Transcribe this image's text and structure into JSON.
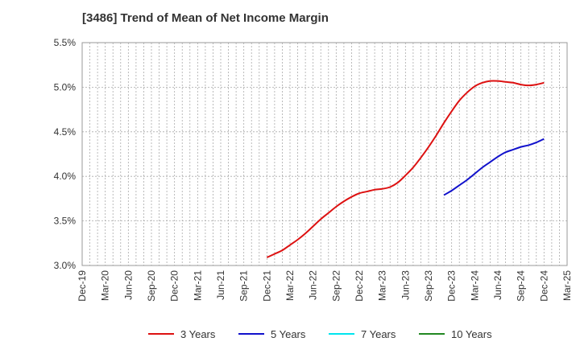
{
  "chart_data": {
    "type": "line",
    "title": "[3486]  Trend of Mean of Net Income Margin",
    "xlabel": "",
    "ylabel": "",
    "ylim": [
      3.0,
      5.5
    ],
    "yticks": [
      "3.0%",
      "3.5%",
      "4.0%",
      "4.5%",
      "5.0%",
      "5.5%"
    ],
    "ytick_values": [
      3.0,
      3.5,
      4.0,
      4.5,
      5.0,
      5.5
    ],
    "x_ticks": [
      "Dec-19",
      "Mar-20",
      "Jun-20",
      "Sep-20",
      "Dec-20",
      "Mar-21",
      "Jun-21",
      "Sep-21",
      "Dec-21",
      "Mar-22",
      "Jun-22",
      "Sep-22",
      "Dec-22",
      "Mar-23",
      "Jun-23",
      "Sep-23",
      "Dec-23",
      "Mar-24",
      "Jun-24",
      "Sep-24",
      "Dec-24",
      "Mar-25"
    ],
    "grid": true,
    "legend_position": "bottom",
    "series": [
      {
        "name": "3 Years",
        "color": "#dd1111",
        "points": [
          [
            "Dec-21",
            3.09
          ],
          [
            "Jan-22",
            3.13
          ],
          [
            "Feb-22",
            3.17
          ],
          [
            "Mar-22",
            3.23
          ],
          [
            "Apr-22",
            3.29
          ],
          [
            "May-22",
            3.36
          ],
          [
            "Jun-22",
            3.44
          ],
          [
            "Jul-22",
            3.52
          ],
          [
            "Aug-22",
            3.59
          ],
          [
            "Sep-22",
            3.66
          ],
          [
            "Oct-22",
            3.72
          ],
          [
            "Nov-22",
            3.77
          ],
          [
            "Dec-22",
            3.81
          ],
          [
            "Jan-23",
            3.83
          ],
          [
            "Feb-23",
            3.85
          ],
          [
            "Mar-23",
            3.86
          ],
          [
            "Apr-23",
            3.88
          ],
          [
            "May-23",
            3.93
          ],
          [
            "Jun-23",
            4.01
          ],
          [
            "Jul-23",
            4.1
          ],
          [
            "Aug-23",
            4.21
          ],
          [
            "Sep-23",
            4.33
          ],
          [
            "Oct-23",
            4.46
          ],
          [
            "Nov-23",
            4.6
          ],
          [
            "Dec-23",
            4.73
          ],
          [
            "Jan-24",
            4.85
          ],
          [
            "Feb-24",
            4.94
          ],
          [
            "Mar-24",
            5.01
          ],
          [
            "Apr-24",
            5.05
          ],
          [
            "May-24",
            5.07
          ],
          [
            "Jun-24",
            5.07
          ],
          [
            "Jul-24",
            5.06
          ],
          [
            "Aug-24",
            5.05
          ],
          [
            "Sep-24",
            5.03
          ],
          [
            "Oct-24",
            5.02
          ],
          [
            "Nov-24",
            5.03
          ],
          [
            "Dec-24",
            5.05
          ]
        ]
      },
      {
        "name": "5 Years",
        "color": "#1111cc",
        "points": [
          [
            "Nov-23",
            3.79
          ],
          [
            "Dec-23",
            3.84
          ],
          [
            "Jan-24",
            3.9
          ],
          [
            "Feb-24",
            3.96
          ],
          [
            "Mar-24",
            4.03
          ],
          [
            "Apr-24",
            4.1
          ],
          [
            "May-24",
            4.16
          ],
          [
            "Jun-24",
            4.22
          ],
          [
            "Jul-24",
            4.27
          ],
          [
            "Aug-24",
            4.3
          ],
          [
            "Sep-24",
            4.33
          ],
          [
            "Oct-24",
            4.35
          ],
          [
            "Nov-24",
            4.38
          ],
          [
            "Dec-24",
            4.42
          ]
        ]
      },
      {
        "name": "7 Years",
        "color": "#00e5ee",
        "points": []
      },
      {
        "name": "10 Years",
        "color": "#228822",
        "points": []
      }
    ]
  }
}
